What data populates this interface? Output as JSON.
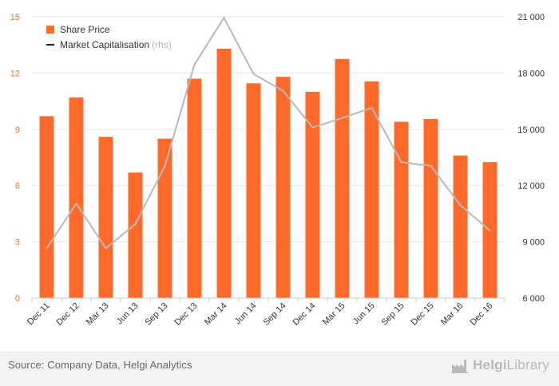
{
  "chart_data": {
    "type": "bar",
    "categories": [
      "Dec 11",
      "Dec 12",
      "Mar 13",
      "Jun 13",
      "Sep 13",
      "Dec 13",
      "Mar 14",
      "Jun 14",
      "Sep 14",
      "Dec 14",
      "Mar 15",
      "Jun 15",
      "Sep 15",
      "Dec 15",
      "Mar 16",
      "Dec 16"
    ],
    "series": [
      {
        "name": "Share Price",
        "axis": "left",
        "kind": "bar",
        "color": "#ff6a2a",
        "values": [
          9.7,
          10.7,
          8.6,
          6.7,
          8.5,
          11.7,
          13.3,
          11.45,
          11.8,
          11.0,
          12.75,
          11.55,
          9.4,
          9.55,
          7.6,
          7.25
        ]
      },
      {
        "name": "Market Capitalisation",
        "axis": "right",
        "kind": "line",
        "color": "#b9b9b9",
        "values": [
          8650,
          11050,
          8650,
          9950,
          13050,
          18450,
          20950,
          17950,
          17050,
          15100,
          15600,
          16150,
          13250,
          13050,
          10950,
          9600
        ]
      }
    ],
    "y_left": {
      "range": [
        0,
        15
      ],
      "ticks": [
        "0",
        "3",
        "6",
        "9",
        "12",
        "15"
      ],
      "tick_values": [
        0,
        3,
        6,
        9,
        12,
        15
      ],
      "tick_color": "#e8712f"
    },
    "y_right": {
      "range": [
        6000,
        21000
      ],
      "ticks": [
        "6 000",
        "9 000",
        "12 000",
        "15 000",
        "18 000",
        "21 000"
      ],
      "tick_values": [
        6000,
        9000,
        12000,
        15000,
        18000,
        21000
      ]
    },
    "grid": true,
    "legend_position": "top-left"
  },
  "legend": {
    "bar_label": "Share Price",
    "line_label": "Market Capitalisation",
    "line_note": "(rhs)",
    "bar_color": "#ff6a2a",
    "line_color": "#222222"
  },
  "footer": {
    "source": "Source: Company Data, Helgi Analytics",
    "brand_strong": "Helgi",
    "brand_light": "Library",
    "brand_icon": "factory-icon"
  }
}
